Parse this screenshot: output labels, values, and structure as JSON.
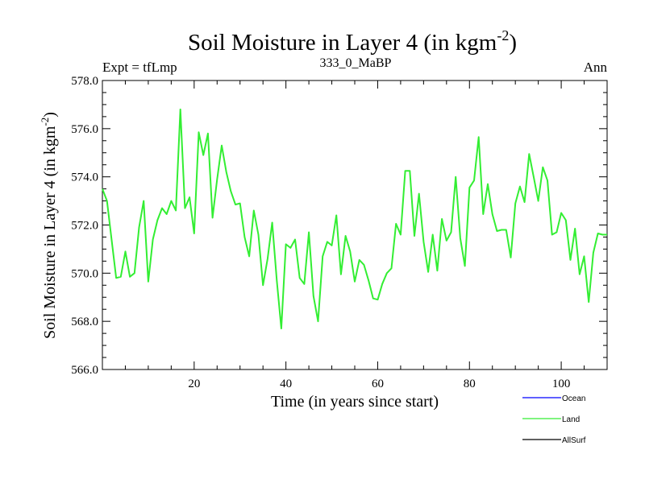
{
  "chart_data": {
    "type": "line",
    "title": "Soil Moisture in Layer 4 (in kgm",
    "title_sup": "-2",
    "title_close": ")",
    "left_label": "Expt = tfLmp",
    "center_label": "333_0_MaBP",
    "right_label": "Ann",
    "xlabel": "Time (in years since start)",
    "ylabel": "Soil Moisture in Layer 4 (in kgm",
    "ylabel_sup": "-2",
    "ylabel_close": ")",
    "xlim": [
      0,
      110
    ],
    "ylim": [
      566.0,
      578.0
    ],
    "xticks": [
      20,
      40,
      60,
      80,
      100
    ],
    "xtick_labels": [
      "20",
      "40",
      "60",
      "80",
      "100"
    ],
    "yticks": [
      566.0,
      568.0,
      570.0,
      572.0,
      574.0,
      576.0,
      578.0
    ],
    "ytick_labels": [
      "566.0",
      "568.0",
      "570.0",
      "572.0",
      "574.0",
      "576.0",
      "578.0"
    ],
    "legend": [
      {
        "name": "Ocean",
        "color": "#0000ff"
      },
      {
        "name": "Land",
        "color": "#33ee33"
      },
      {
        "name": "AllSurf",
        "color": "#000000"
      }
    ],
    "series": [
      {
        "name": "Land",
        "color": "#33ee33",
        "x": [
          0,
          1,
          2,
          3,
          4,
          5,
          6,
          7,
          8,
          9,
          10,
          11,
          12,
          13,
          14,
          15,
          16,
          17,
          18,
          19,
          20,
          21,
          22,
          23,
          24,
          25,
          26,
          27,
          28,
          29,
          30,
          31,
          32,
          33,
          34,
          35,
          36,
          37,
          38,
          39,
          40,
          41,
          42,
          43,
          44,
          45,
          46,
          47,
          48,
          49,
          50,
          51,
          52,
          53,
          54,
          55,
          56,
          57,
          58,
          59,
          60,
          61,
          62,
          63,
          64,
          65,
          66,
          67,
          68,
          69,
          70,
          71,
          72,
          73,
          74,
          75,
          76,
          77,
          78,
          79,
          80,
          81,
          82,
          83,
          84,
          85,
          86,
          87,
          88,
          89,
          90,
          91,
          92,
          93,
          94,
          95,
          96,
          97,
          98,
          99,
          100,
          101,
          102,
          103,
          104,
          105,
          106,
          107,
          108,
          109,
          110
        ],
        "values": [
          573.5,
          573.0,
          571.4,
          569.8,
          569.85,
          570.9,
          569.85,
          570.0,
          571.9,
          573.0,
          569.65,
          571.4,
          572.2,
          572.7,
          572.45,
          573.0,
          572.6,
          576.8,
          572.7,
          573.15,
          571.65,
          575.85,
          574.9,
          575.8,
          572.3,
          573.9,
          575.3,
          574.2,
          573.4,
          572.85,
          572.9,
          571.5,
          570.7,
          572.6,
          571.6,
          569.5,
          570.6,
          572.1,
          569.7,
          567.7,
          571.2,
          571.05,
          571.4,
          569.8,
          569.55,
          571.7,
          569.05,
          568.0,
          570.7,
          571.3,
          571.15,
          572.4,
          569.95,
          571.55,
          570.9,
          569.65,
          570.55,
          570.35,
          569.7,
          568.95,
          568.9,
          569.55,
          570.0,
          570.2,
          572.05,
          571.6,
          574.25,
          574.25,
          571.55,
          573.3,
          571.3,
          570.05,
          571.6,
          570.1,
          572.25,
          571.35,
          571.7,
          574.0,
          571.45,
          570.3,
          573.55,
          573.85,
          575.65,
          572.45,
          573.7,
          572.45,
          571.75,
          571.8,
          571.8,
          570.65,
          572.9,
          573.6,
          572.95,
          574.95,
          574.0,
          573.0,
          574.4,
          573.85,
          571.6,
          571.7,
          572.5,
          572.2,
          570.55,
          571.85,
          569.95,
          570.7,
          568.8,
          570.85,
          571.65,
          571.6,
          571.6
        ]
      }
    ]
  }
}
